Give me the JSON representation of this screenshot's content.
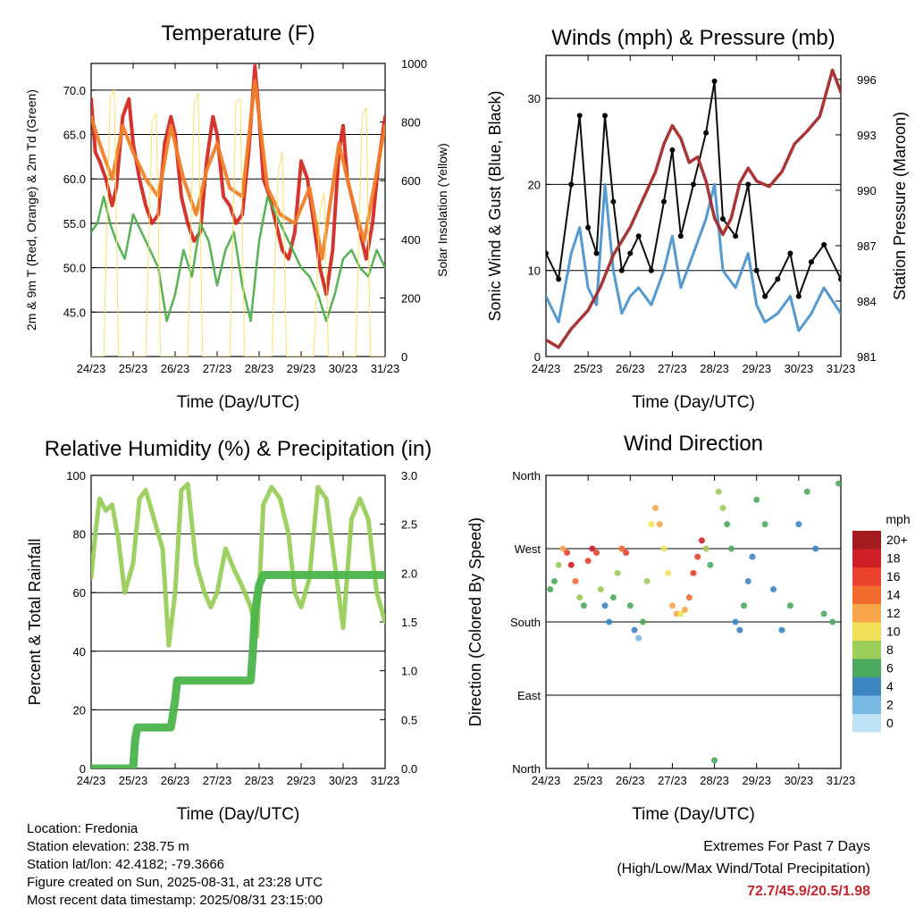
{
  "charts": [
    {
      "title": "Temperature (F)",
      "xlabel": "Time (Day/UTC)",
      "ylabel_left": "2m & 9m T (Red, Orange) & 2m Td (Green)",
      "ylabel_right": "Solar Insolation (Yellow)",
      "xticks": [
        "24/23",
        "25/23",
        "26/23",
        "27/23",
        "28/23",
        "29/23",
        "30/23",
        "31/23"
      ],
      "yticks_left": [
        "70.0",
        "65.0",
        "60.0",
        "55.0",
        "50.0",
        "45.0"
      ],
      "yticks_right": [
        "1000",
        "800",
        "600",
        "400",
        "200",
        "0"
      ]
    },
    {
      "title": "Winds (mph) & Pressure (mb)",
      "xlabel": "Time (Day/UTC)",
      "ylabel_left": "Sonic Wind & Gust (Blue, Black)",
      "ylabel_right": "Station Pressure (Maroon)",
      "xticks": [
        "24/23",
        "25/23",
        "26/23",
        "27/23",
        "28/23",
        "29/23",
        "30/23",
        "31/23"
      ],
      "yticks_left": [
        "30",
        "20",
        "10",
        "0"
      ],
      "yticks_right": [
        "996",
        "993",
        "990",
        "987",
        "984",
        "981"
      ]
    },
    {
      "title": "Relative Humidity (%) & Precipitation (in)",
      "xlabel": "Time (Day/UTC)",
      "ylabel_left": "Percent & Total Rainfall",
      "xticks": [
        "24/23",
        "25/23",
        "26/23",
        "27/23",
        "28/23",
        "29/23",
        "30/23",
        "31/23"
      ],
      "yticks_left": [
        "100",
        "80",
        "60",
        "40",
        "20",
        "0"
      ],
      "yticks_right": [
        "3.0",
        "2.5",
        "2.0",
        "1.5",
        "1.0",
        "0.5",
        "0.0"
      ]
    },
    {
      "title": "Wind Direction",
      "xlabel": "Time (Day/UTC)",
      "ylabel_left": "Direction (Colored By Speed)",
      "xticks": [
        "24/23",
        "25/23",
        "26/23",
        "27/23",
        "28/23",
        "29/23",
        "30/23",
        "31/23"
      ],
      "yticks_left": [
        "North",
        "West",
        "South",
        "East",
        "North"
      ],
      "legend_title": "mph",
      "legend_labels": [
        "20+",
        "18",
        "16",
        "14",
        "12",
        "10",
        "8",
        "6",
        "4",
        "2",
        "0"
      ],
      "legend_colors": [
        "#a31a1f",
        "#cf2027",
        "#e8412c",
        "#f26b2f",
        "#f9a64a",
        "#f2e05a",
        "#9ccc59",
        "#4caa5e",
        "#3d86c2",
        "#7ab9e3",
        "#bfe3f5"
      ]
    }
  ],
  "info": {
    "location": "Location: Fredonia",
    "elevation": "Station elevation: 238.75 m",
    "latlon": "Station lat/lon: 42.4182; -79.3666",
    "created": "Figure created on Sun, 2025-08-31, at 23:28 UTC",
    "recent": "Most recent data timestamp: 2025/08/31 23:15:00"
  },
  "extremes": {
    "title": "Extremes For Past 7 Days",
    "subtitle": "(High/Low/Max Wind/Total Precipitation)",
    "values": "72.7/45.9/20.5/1.98"
  },
  "chart_data": [
    {
      "type": "line",
      "x_unit": "days since 24/23 UTC",
      "series": [
        {
          "color": "#d42a22",
          "x": [
            0,
            0.1,
            0.2,
            0.35,
            0.5,
            0.6,
            0.75,
            0.9,
            1.0,
            1.15,
            1.3,
            1.45,
            1.6,
            1.75,
            1.9,
            2.0,
            2.15,
            2.3,
            2.45,
            2.6,
            2.75,
            2.9,
            3.0,
            3.15,
            3.3,
            3.45,
            3.6,
            3.75,
            3.9,
            4.0,
            4.1,
            4.25,
            4.4,
            4.55,
            4.7,
            4.85,
            5.0,
            5.15,
            5.3,
            5.45,
            5.6,
            5.75,
            5.9,
            6.0,
            6.1,
            6.25,
            6.4,
            6.55,
            6.7,
            6.85,
            7.0
          ],
          "y": [
            69,
            63,
            62,
            60,
            57,
            59,
            67,
            69,
            64,
            60,
            57,
            55,
            56,
            64,
            67,
            65,
            58,
            55,
            53,
            54,
            62,
            67,
            65,
            58,
            57,
            55,
            56,
            63,
            72.7,
            67,
            60,
            58,
            55,
            52,
            51,
            54,
            62,
            60,
            55,
            50,
            47,
            52,
            63,
            66,
            60,
            57,
            54,
            51,
            55,
            62,
            67
          ]
        },
        {
          "color": "#f07f2a",
          "x": [
            0,
            0.2,
            0.5,
            0.75,
            1.0,
            1.3,
            1.6,
            1.9,
            2.2,
            2.5,
            2.75,
            3.0,
            3.3,
            3.6,
            3.9,
            4.2,
            4.5,
            4.85,
            5.2,
            5.5,
            5.9,
            6.2,
            6.5,
            7.0
          ],
          "y": [
            67,
            64,
            60,
            66,
            63,
            60,
            58,
            66,
            60,
            56,
            61,
            64,
            59,
            58,
            71,
            59,
            56,
            55,
            59,
            51,
            64,
            58,
            53,
            66
          ]
        },
        {
          "color": "#4db04b",
          "x": [
            0,
            0.15,
            0.3,
            0.45,
            0.6,
            0.8,
            1.0,
            1.2,
            1.4,
            1.6,
            1.8,
            2.0,
            2.2,
            2.4,
            2.6,
            2.8,
            3.0,
            3.2,
            3.4,
            3.6,
            3.8,
            4.0,
            4.2,
            4.4,
            4.6,
            4.8,
            5.0,
            5.2,
            5.4,
            5.6,
            5.8,
            6.0,
            6.2,
            6.4,
            6.6,
            6.8,
            7.0
          ],
          "y": [
            54,
            55,
            58,
            55,
            53,
            51,
            56,
            54,
            52,
            50,
            44,
            47,
            52,
            49,
            55,
            53,
            48,
            52,
            54,
            48,
            44,
            53,
            58,
            56,
            54,
            52,
            50,
            49,
            47,
            44,
            47,
            51,
            52,
            50,
            49,
            52,
            50
          ]
        },
        {
          "color": "#fbe060",
          "axis": "right",
          "x": [
            0,
            0.3,
            0.45,
            0.55,
            0.65,
            1.0,
            1.3,
            1.45,
            1.55,
            1.65,
            2.0,
            2.3,
            2.45,
            2.55,
            2.65,
            3.0,
            3.3,
            3.45,
            3.55,
            3.65,
            4.0,
            4.3,
            4.45,
            4.55,
            4.65,
            5.0,
            5.3,
            5.45,
            5.55,
            5.65,
            6.0,
            6.3,
            6.45,
            6.55,
            6.65,
            7.0
          ],
          "y": [
            0,
            0,
            880,
            910,
            0,
            0,
            0,
            800,
            830,
            0,
            0,
            0,
            860,
            900,
            0,
            0,
            0,
            870,
            880,
            0,
            0,
            0,
            620,
            700,
            0,
            0,
            0,
            500,
            560,
            0,
            0,
            0,
            820,
            850,
            0,
            0
          ]
        }
      ]
    },
    {
      "type": "line",
      "x_unit": "days since 24/23 UTC",
      "series": [
        {
          "color": "#4a93d0",
          "x": [
            0,
            0.3,
            0.6,
            0.8,
            1.0,
            1.2,
            1.4,
            1.6,
            1.8,
            2.0,
            2.2,
            2.5,
            2.8,
            3.0,
            3.2,
            3.5,
            3.8,
            4.0,
            4.2,
            4.5,
            4.8,
            5.0,
            5.2,
            5.5,
            5.8,
            6.0,
            6.3,
            6.6,
            7.0
          ],
          "y": [
            7,
            4,
            12,
            15,
            8,
            6,
            20,
            10,
            5,
            7,
            8,
            6,
            10,
            14,
            8,
            12,
            16,
            20,
            10,
            8,
            12,
            6,
            4,
            5,
            7,
            3,
            5,
            8,
            5
          ]
        },
        {
          "color": "#000000",
          "x": [
            0,
            0.3,
            0.6,
            0.8,
            1.0,
            1.2,
            1.4,
            1.6,
            1.8,
            2.0,
            2.2,
            2.5,
            2.8,
            3.0,
            3.2,
            3.5,
            3.8,
            4.0,
            4.2,
            4.5,
            4.8,
            5.0,
            5.2,
            5.5,
            5.8,
            6.0,
            6.3,
            6.6,
            7.0
          ],
          "y": [
            12,
            9,
            20,
            28,
            15,
            12,
            28,
            18,
            10,
            12,
            14,
            10,
            18,
            24,
            14,
            20,
            26,
            32,
            16,
            14,
            20,
            10,
            7,
            9,
            12,
            7,
            11,
            13,
            9
          ]
        },
        {
          "color": "#a52a2a",
          "axis": "right",
          "x": [
            0,
            0.3,
            0.6,
            1.0,
            1.3,
            1.6,
            2.0,
            2.3,
            2.6,
            2.8,
            3.0,
            3.2,
            3.4,
            3.6,
            3.8,
            4.0,
            4.2,
            4.4,
            4.6,
            4.8,
            5.0,
            5.3,
            5.6,
            5.9,
            6.2,
            6.5,
            6.8,
            7.0
          ],
          "y": [
            981.9,
            981.5,
            982.5,
            983.5,
            984.8,
            986.5,
            988.0,
            989.5,
            991.0,
            992.5,
            993.5,
            992.8,
            991.5,
            991.8,
            990.5,
            988.5,
            987.6,
            988.5,
            990.4,
            991.2,
            990.5,
            990.2,
            991.0,
            992.5,
            993.2,
            994.0,
            996.5,
            995.3
          ]
        }
      ]
    },
    {
      "type": "line",
      "x_unit": "days since 24/23 UTC",
      "series": [
        {
          "color": "#9acd5a",
          "x": [
            0,
            0.1,
            0.2,
            0.35,
            0.5,
            0.65,
            0.8,
            1.0,
            1.15,
            1.3,
            1.5,
            1.7,
            1.85,
            2.0,
            2.15,
            2.3,
            2.5,
            2.7,
            2.85,
            3.0,
            3.2,
            3.4,
            3.6,
            3.8,
            3.95,
            4.1,
            4.3,
            4.5,
            4.7,
            4.85,
            5.0,
            5.2,
            5.4,
            5.6,
            5.8,
            6.0,
            6.2,
            6.4,
            6.6,
            6.8,
            7.0
          ],
          "y": [
            65,
            80,
            92,
            88,
            90,
            78,
            60,
            70,
            92,
            95,
            85,
            75,
            42,
            60,
            95,
            97,
            70,
            60,
            55,
            60,
            75,
            68,
            62,
            55,
            45,
            90,
            96,
            92,
            80,
            60,
            55,
            65,
            96,
            92,
            70,
            48,
            85,
            92,
            85,
            60,
            50
          ]
        },
        {
          "color": "#4bb44b",
          "axis": "right",
          "x": [
            0,
            0.5,
            1.0,
            1.05,
            1.1,
            1.9,
            2.0,
            2.05,
            3.8,
            3.85,
            3.9,
            4.0,
            4.1,
            5.0,
            6.0,
            7.0
          ],
          "y": [
            0.0,
            0.0,
            0.0,
            0.3,
            0.42,
            0.42,
            0.7,
            0.9,
            0.9,
            1.2,
            1.6,
            1.88,
            1.98,
            1.98,
            1.98,
            1.98
          ]
        }
      ]
    },
    {
      "type": "scatter",
      "x_unit": "days since 24/23 UTC",
      "y_unit": "direction in degrees (0=North, 90=East, 180=South, 270=West, 360=North)",
      "series": [
        {
          "x": [
            0.1,
            0.2,
            0.3,
            0.4,
            0.5,
            0.6,
            0.7,
            0.8,
            0.9,
            1.0,
            1.1,
            1.2,
            1.3,
            1.4,
            1.5,
            1.6,
            1.7,
            1.8,
            1.9,
            2.0,
            2.1,
            2.2,
            2.3,
            2.4,
            2.5,
            2.6,
            2.7,
            2.8,
            2.9,
            3.0,
            3.1,
            3.2,
            3.3,
            3.4,
            3.5,
            3.6,
            3.7,
            3.8,
            3.9,
            4.0,
            4.1,
            4.2,
            4.3,
            4.4,
            4.5,
            4.6,
            4.7,
            4.8,
            4.9,
            5.0,
            5.2,
            5.4,
            5.6,
            5.8,
            6.0,
            6.2,
            6.4,
            6.6,
            6.8,
            6.95
          ],
          "y": [
            220,
            230,
            250,
            270,
            265,
            250,
            230,
            210,
            200,
            255,
            270,
            265,
            220,
            200,
            180,
            210,
            240,
            270,
            265,
            200,
            170,
            160,
            180,
            230,
            300,
            320,
            300,
            270,
            240,
            200,
            190,
            190,
            195,
            210,
            240,
            260,
            280,
            270,
            250,
            10,
            340,
            320,
            300,
            270,
            180,
            170,
            200,
            230,
            260,
            330,
            300,
            220,
            170,
            200,
            300,
            340,
            270,
            190,
            180,
            350
          ],
          "speed": [
            6,
            6,
            8,
            12,
            16,
            18,
            14,
            8,
            6,
            16,
            18,
            16,
            8,
            4,
            4,
            6,
            8,
            14,
            16,
            6,
            4,
            2,
            6,
            8,
            10,
            12,
            12,
            10,
            10,
            12,
            12,
            10,
            12,
            14,
            16,
            16,
            18,
            8,
            6,
            6,
            8,
            8,
            6,
            6,
            4,
            4,
            6,
            4,
            4,
            6,
            6,
            4,
            4,
            6,
            4,
            6,
            4,
            6,
            6,
            6
          ]
        }
      ]
    }
  ]
}
